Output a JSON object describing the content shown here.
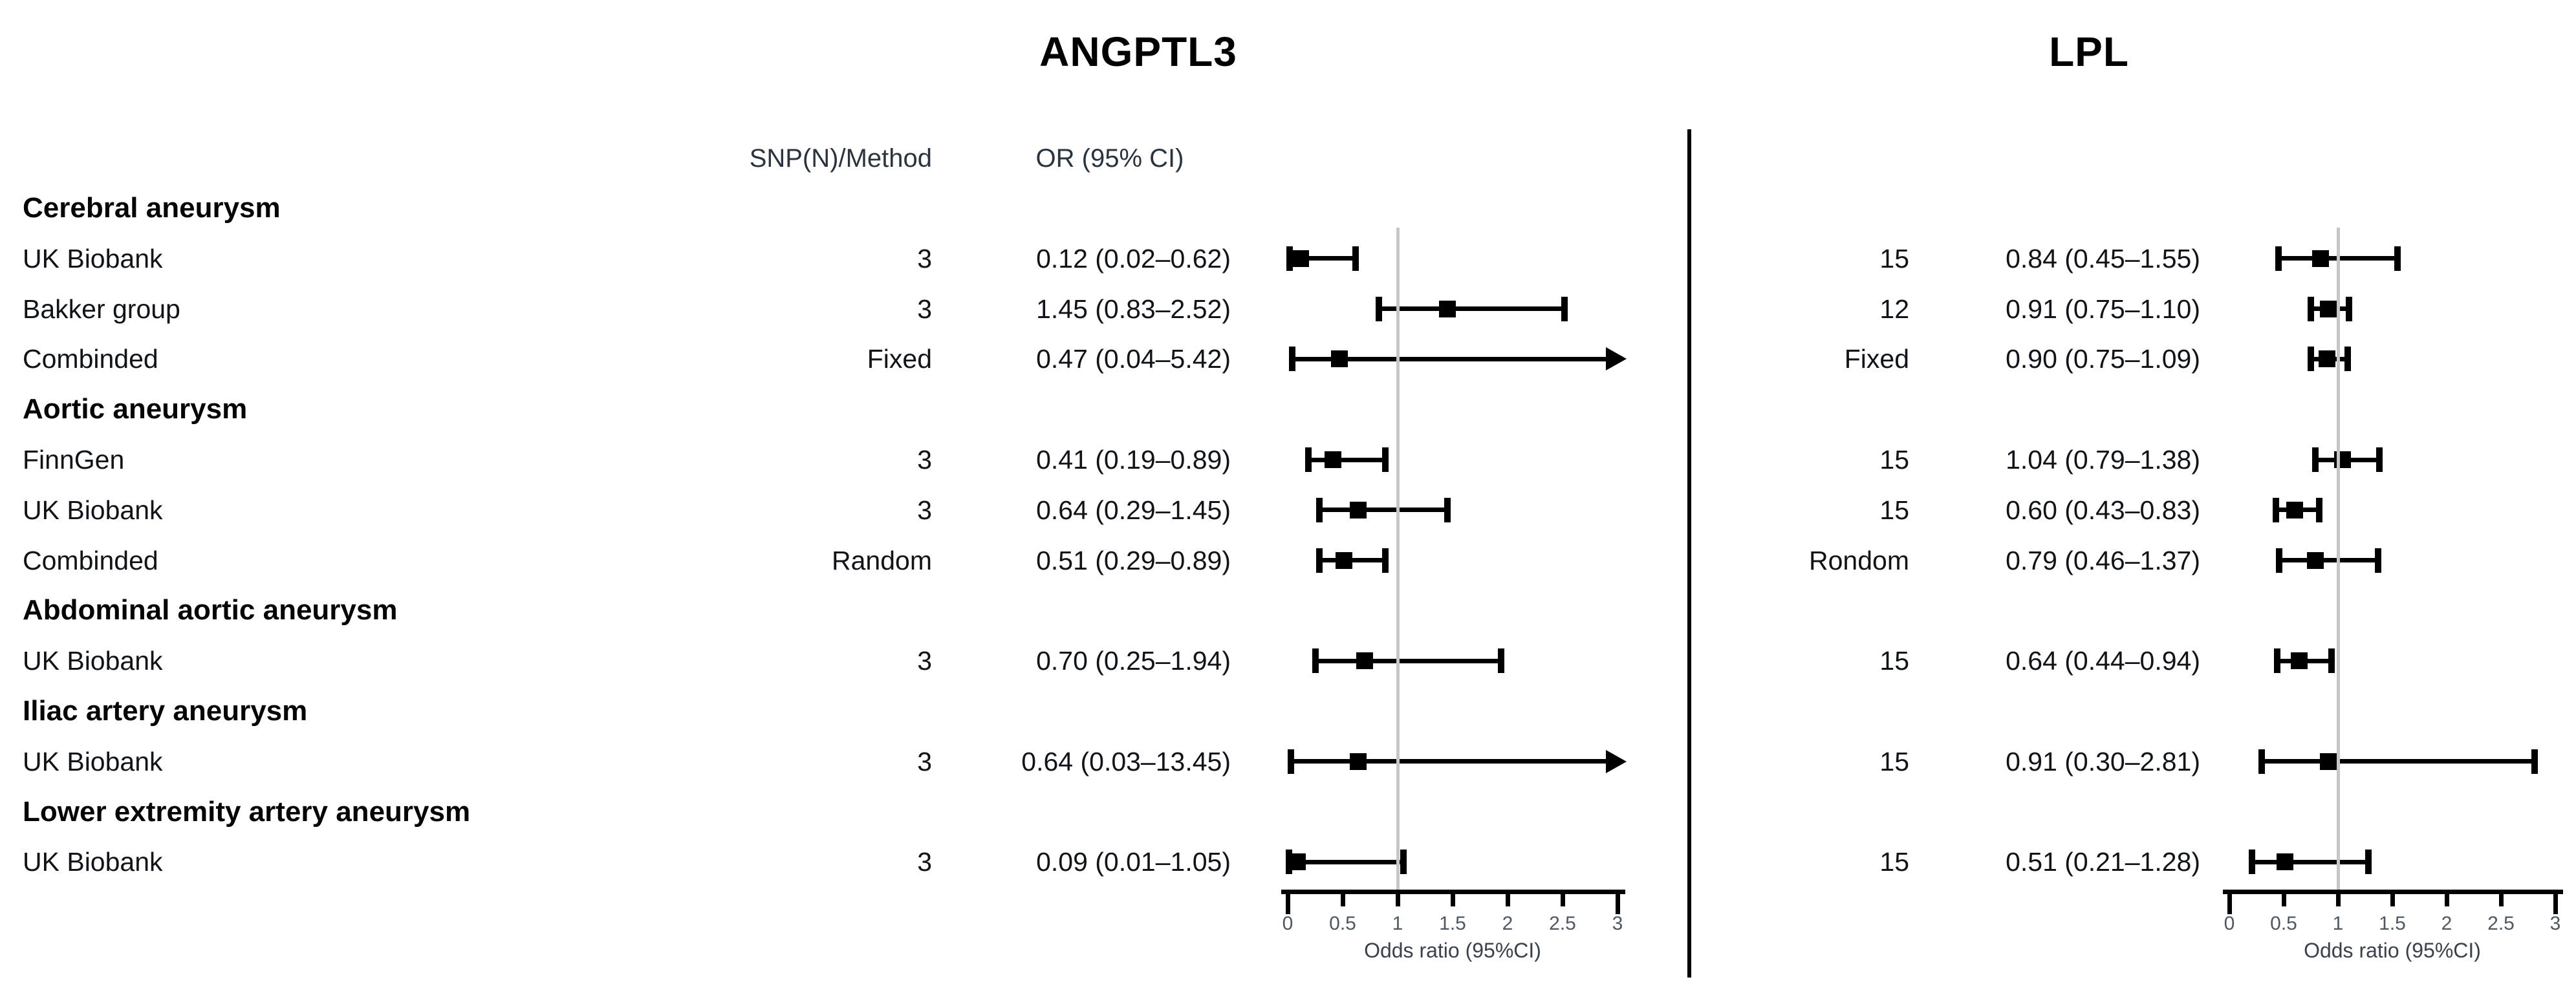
{
  "figure": {
    "background": "#ffffff",
    "columns": {
      "snp_method": "SNP(N)/Method",
      "or_ci": "OR (95% CI)"
    }
  },
  "chart_data": {
    "type": "forest",
    "panels": [
      "ANGPTL3",
      "LPL"
    ],
    "xlabel": "Odds ratio (95%CI)",
    "xlim": [
      0,
      3
    ],
    "ref_line": 1,
    "tick_values": [
      0,
      0.5,
      1,
      1.5,
      2,
      2.5,
      3
    ],
    "tick_labels": [
      "0",
      "0.5",
      "1",
      "1.5",
      "2",
      "2.5",
      "3"
    ],
    "colors": {
      "marker": "#000000",
      "ref_line": "#c6c6c6",
      "divider": "#000000"
    },
    "rows": [
      {
        "kind": "group",
        "label": "Cerebral aneurysm"
      },
      {
        "kind": "study",
        "label": "UK Biobank",
        "ANGPTL3": {
          "snp": "3",
          "or": 0.12,
          "lo": 0.02,
          "hi": 0.62,
          "text": "0.12 (0.02–0.62)"
        },
        "LPL": {
          "snp": "15",
          "or": 0.84,
          "lo": 0.45,
          "hi": 1.55,
          "text": "0.84 (0.45–1.55)"
        }
      },
      {
        "kind": "study",
        "label": "Bakker group",
        "ANGPTL3": {
          "snp": "3",
          "or": 1.45,
          "lo": 0.83,
          "hi": 2.52,
          "text": "1.45 (0.83–2.52)"
        },
        "LPL": {
          "snp": "12",
          "or": 0.91,
          "lo": 0.75,
          "hi": 1.1,
          "text": "0.91 (0.75–1.10)"
        }
      },
      {
        "kind": "study",
        "label": "Combinded",
        "ANGPTL3": {
          "snp": "Fixed",
          "or": 0.47,
          "lo": 0.04,
          "hi": 5.42,
          "text": "0.47 (0.04–5.42)"
        },
        "LPL": {
          "snp": "Fixed",
          "or": 0.9,
          "lo": 0.75,
          "hi": 1.09,
          "text": "0.90 (0.75–1.09)"
        }
      },
      {
        "kind": "group",
        "label": "Aortic aneurysm"
      },
      {
        "kind": "study",
        "label": "FinnGen",
        "ANGPTL3": {
          "snp": "3",
          "or": 0.41,
          "lo": 0.19,
          "hi": 0.89,
          "text": "0.41 (0.19–0.89)"
        },
        "LPL": {
          "snp": "15",
          "or": 1.04,
          "lo": 0.79,
          "hi": 1.38,
          "text": "1.04 (0.79–1.38)"
        }
      },
      {
        "kind": "study",
        "label": "UK Biobank",
        "ANGPTL3": {
          "snp": "3",
          "or": 0.64,
          "lo": 0.29,
          "hi": 1.45,
          "text": "0.64 (0.29–1.45)"
        },
        "LPL": {
          "snp": "15",
          "or": 0.6,
          "lo": 0.43,
          "hi": 0.83,
          "text": "0.60 (0.43–0.83)"
        }
      },
      {
        "kind": "study",
        "label": "Combinded",
        "ANGPTL3": {
          "snp": "Random",
          "or": 0.51,
          "lo": 0.29,
          "hi": 0.89,
          "text": "0.51 (0.29–0.89)"
        },
        "LPL": {
          "snp": "Rondom",
          "or": 0.79,
          "lo": 0.46,
          "hi": 1.37,
          "text": "0.79 (0.46–1.37)"
        }
      },
      {
        "kind": "group",
        "label": "Abdominal aortic aneurysm"
      },
      {
        "kind": "study",
        "label": "UK Biobank",
        "ANGPTL3": {
          "snp": "3",
          "or": 0.7,
          "lo": 0.25,
          "hi": 1.94,
          "text": "0.70 (0.25–1.94)"
        },
        "LPL": {
          "snp": "15",
          "or": 0.64,
          "lo": 0.44,
          "hi": 0.94,
          "text": "0.64 (0.44–0.94)"
        }
      },
      {
        "kind": "group",
        "label": "Iliac artery aneurysm"
      },
      {
        "kind": "study",
        "label": "UK Biobank",
        "ANGPTL3": {
          "snp": "3",
          "or": 0.64,
          "lo": 0.03,
          "hi": 13.45,
          "text": "0.64 (0.03–13.45)"
        },
        "LPL": {
          "snp": "15",
          "or": 0.91,
          "lo": 0.3,
          "hi": 2.81,
          "text": "0.91 (0.30–2.81)"
        }
      },
      {
        "kind": "group",
        "label": "Lower extremity artery aneurysm"
      },
      {
        "kind": "study",
        "label": "UK Biobank",
        "ANGPTL3": {
          "snp": "3",
          "or": 0.09,
          "lo": 0.01,
          "hi": 1.05,
          "text": "0.09 (0.01–1.05)"
        },
        "LPL": {
          "snp": "15",
          "or": 0.51,
          "lo": 0.21,
          "hi": 1.28,
          "text": "0.51 (0.21–1.28)"
        }
      }
    ]
  }
}
